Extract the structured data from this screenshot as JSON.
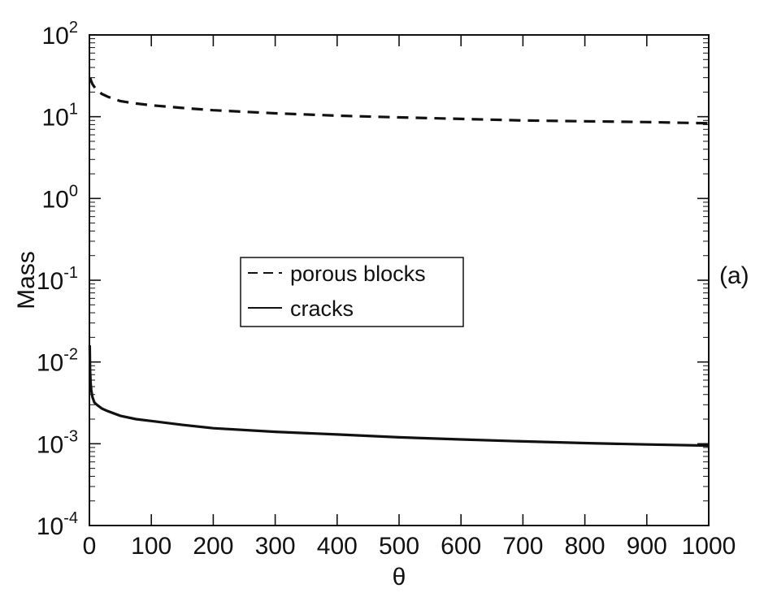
{
  "chart_data": {
    "type": "line",
    "xlabel": "θ",
    "ylabel": "Mass",
    "xlim": [
      0,
      1000
    ],
    "ylim": [
      0.0001,
      100
    ],
    "yscale": "log",
    "xticks": [
      0,
      100,
      200,
      300,
      400,
      500,
      600,
      700,
      800,
      900,
      1000
    ],
    "xtick_labels": [
      "0",
      "100",
      "200",
      "300",
      "400",
      "500",
      "600",
      "700",
      "800",
      "900",
      "1000"
    ],
    "ytick_labels": [
      {
        "value": 0.0001,
        "base": "10",
        "exp": "-4"
      },
      {
        "value": 0.001,
        "base": "10",
        "exp": "-3"
      },
      {
        "value": 0.01,
        "base": "10",
        "exp": "-2"
      },
      {
        "value": 0.1,
        "base": "10",
        "exp": "-1"
      },
      {
        "value": 1,
        "base": "10",
        "exp": "0"
      },
      {
        "value": 10,
        "base": "10",
        "exp": "1"
      },
      {
        "value": 100,
        "base": "10",
        "exp": "2"
      }
    ],
    "grid": false,
    "legend_position": "center-left",
    "annotation": "(a)",
    "series": [
      {
        "name": "porous blocks",
        "style": "dashed",
        "color": "#111111",
        "x": [
          1,
          3,
          5,
          10,
          20,
          30,
          50,
          75,
          100,
          150,
          200,
          300,
          400,
          500,
          600,
          700,
          800,
          900,
          1000
        ],
        "y": [
          30,
          27,
          25,
          22,
          19,
          17.5,
          15.5,
          14.5,
          13.8,
          12.8,
          12,
          11,
          10.3,
          9.8,
          9.4,
          9.0,
          8.8,
          8.6,
          8.3
        ]
      },
      {
        "name": "cracks",
        "style": "solid",
        "color": "#111111",
        "x": [
          0.5,
          1,
          2,
          3,
          5,
          8,
          12,
          20,
          30,
          50,
          75,
          100,
          150,
          200,
          300,
          400,
          500,
          600,
          700,
          800,
          900,
          1000
        ],
        "y": [
          0.016,
          0.008,
          0.0055,
          0.0045,
          0.0037,
          0.0032,
          0.003,
          0.0027,
          0.0025,
          0.0022,
          0.002,
          0.0019,
          0.0017,
          0.00155,
          0.0014,
          0.0013,
          0.0012,
          0.00113,
          0.00107,
          0.00102,
          0.00098,
          0.00095
        ]
      }
    ]
  }
}
